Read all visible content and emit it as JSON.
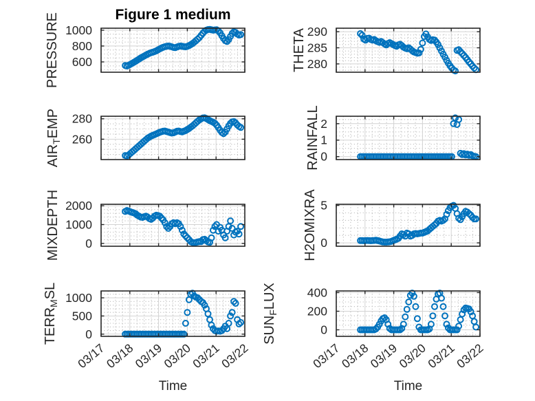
{
  "styles": {
    "background": "#ffffff",
    "axis_color": "#262626",
    "grid_color": "#d2d2d2",
    "minor_grid_color": "#bdbdbd",
    "text_color": "#262626",
    "title_color": "#000000"
  },
  "chart_data": {
    "type": "scatter",
    "title": "Figure 1 medium",
    "xlabel": "Time",
    "marker": "o",
    "marker_color": "#0072BD",
    "grid": "major+minor",
    "xtick_labels": [
      "03/17",
      "03/18",
      "03/19",
      "03/20",
      "03/21",
      "03/22"
    ],
    "xlim_days": [
      0,
      5
    ],
    "x_minor_step_days": 0.25,
    "x_days": [
      0.84,
      0.9,
      0.96,
      1.02,
      1.08,
      1.14,
      1.2,
      1.26,
      1.32,
      1.38,
      1.44,
      1.5,
      1.56,
      1.62,
      1.68,
      1.74,
      1.8,
      1.86,
      1.92,
      1.98,
      2.04,
      2.1,
      2.16,
      2.22,
      2.28,
      2.34,
      2.4,
      2.46,
      2.52,
      2.58,
      2.64,
      2.7,
      2.76,
      2.82,
      2.88,
      2.94,
      3.0,
      3.06,
      3.12,
      3.18,
      3.24,
      3.3,
      3.36,
      3.42,
      3.48,
      3.54,
      3.6,
      3.66,
      3.72,
      3.78,
      3.84,
      3.9,
      3.96,
      4.02,
      4.08,
      4.14,
      4.2,
      4.26,
      4.32,
      4.38,
      4.44,
      4.5,
      4.56,
      4.62,
      4.68,
      4.74,
      4.8,
      4.86
    ],
    "subplots": [
      {
        "name": "PRESSURE",
        "ylabel_parts": [
          {
            "text": "PRESSURE"
          }
        ],
        "yticks": [
          600,
          800,
          1000
        ],
        "ylim": [
          470,
          1025
        ],
        "y_minor_step": 50,
        "values": [
          555,
          548,
          558,
          570,
          582,
          595,
          608,
          622,
          636,
          650,
          662,
          674,
          686,
          698,
          708,
          716,
          722,
          730,
          740,
          752,
          764,
          775,
          785,
          792,
          797,
          800,
          798,
          790,
          782,
          780,
          788,
          796,
          800,
          798,
          793,
          790,
          796,
          806,
          818,
          832,
          848,
          866,
          886,
          908,
          935,
          962,
          985,
          1000,
          1008,
          1010,
          1005,
          1000,
          1003,
          1005,
          992,
          965,
          930,
          895,
          868,
          858,
          882,
          922,
          958,
          980,
          972,
          950,
          938,
          944
        ]
      },
      {
        "name": "THETA",
        "ylabel_parts": [
          {
            "text": "THETA"
          }
        ],
        "yticks": [
          280,
          285,
          290
        ],
        "ylim": [
          277.4,
          291.1
        ],
        "y_minor_step": 1,
        "values": [
          289.4,
          288.9,
          287.7,
          287.4,
          287.9,
          288.0,
          287.6,
          287.4,
          287.6,
          287.2,
          286.9,
          286.7,
          287.0,
          286.6,
          286.2,
          285.9,
          286.3,
          286.6,
          286.3,
          286.0,
          285.7,
          285.5,
          285.9,
          286.1,
          285.7,
          285.2,
          284.9,
          284.7,
          285.0,
          284.6,
          284.1,
          283.7,
          283.5,
          283.3,
          283.4,
          284.5,
          286.5,
          288.5,
          289.3,
          288.4,
          287.6,
          287.3,
          287.5,
          287.4,
          286.8,
          286.0,
          285.0,
          284.0,
          283.0,
          282.1,
          281.1,
          280.2,
          279.4,
          278.7,
          278.1,
          277.8,
          284.2,
          284.4,
          283.8,
          283.2,
          282.6,
          282.0,
          281.3,
          280.6,
          280.0,
          279.3,
          278.7,
          278.2
        ]
      },
      {
        "name": "AIR_TEMP",
        "ylabel_parts": [
          {
            "text": "AIR"
          },
          {
            "text": "T",
            "sub": true
          },
          {
            "text": "EMP"
          }
        ],
        "yticks": [
          260,
          280
        ],
        "ylim": [
          240,
          282.5
        ],
        "y_minor_step": 5,
        "values": [
          244,
          243.5,
          244.5,
          246,
          247.5,
          249,
          250.5,
          252,
          253.5,
          255,
          256.5,
          258,
          259.5,
          261,
          262,
          263,
          263.8,
          264.5,
          265.2,
          266,
          266.8,
          267.3,
          267.8,
          268,
          267.5,
          267,
          266.5,
          266,
          266.3,
          267,
          267.8,
          268,
          267.5,
          267.2,
          267.8,
          268.5,
          269.5,
          270.5,
          271.8,
          273,
          274.5,
          276,
          277.5,
          279,
          280,
          280.8,
          281,
          280.3,
          279.2,
          278.2,
          277.4,
          276.6,
          275.6,
          273.8,
          271.4,
          268.8,
          266.6,
          265.5,
          267,
          270,
          273,
          275.5,
          277,
          277.3,
          276,
          274,
          272.5,
          271.5
        ]
      },
      {
        "name": "RAINFALL",
        "ylabel_parts": [
          {
            "text": "RAINFALL"
          }
        ],
        "yticks": [
          0,
          1,
          2
        ],
        "ylim": [
          -0.18,
          2.45
        ],
        "y_minor_step": 0.25,
        "values": [
          0,
          0,
          0,
          0,
          0,
          0,
          0,
          0,
          0,
          0,
          0,
          0,
          0,
          0,
          0,
          0,
          0,
          0,
          0,
          0,
          0,
          0,
          0,
          0,
          0,
          0,
          0,
          0,
          0,
          0,
          0,
          0,
          0,
          0,
          0,
          0,
          0,
          0,
          0,
          0,
          0,
          0,
          0,
          0,
          0,
          0,
          0,
          0,
          0,
          0,
          0,
          0,
          0,
          0,
          2.0,
          2.35,
          1.95,
          2.25,
          0.2,
          0.12,
          0.18,
          0.1,
          0.15,
          0.08,
          0.12,
          0.05,
          0.02,
          0
        ]
      },
      {
        "name": "MIXDEPTH",
        "ylabel_parts": [
          {
            "text": "MIXDEPTH"
          }
        ],
        "yticks": [
          0,
          1000,
          2000
        ],
        "ylim": [
          -150,
          2080
        ],
        "y_minor_step": 200,
        "values": [
          1700,
          1750,
          1720,
          1680,
          1650,
          1620,
          1580,
          1500,
          1450,
          1400,
          1380,
          1420,
          1450,
          1400,
          1320,
          1280,
          1350,
          1450,
          1500,
          1480,
          1450,
          1350,
          1250,
          1100,
          900,
          800,
          900,
          1050,
          1100,
          1050,
          1100,
          1050,
          900,
          700,
          500,
          400,
          300,
          200,
          100,
          50,
          30,
          50,
          80,
          100,
          100,
          200,
          220,
          150,
          80,
          60,
          300,
          700,
          900,
          1000,
          650,
          850,
          700,
          450,
          300,
          650,
          900,
          1200,
          800,
          450,
          600,
          650,
          500,
          900
        ]
      },
      {
        "name": "H2OMIXRA",
        "ylabel_parts": [
          {
            "text": "H2OMIXRA"
          }
        ],
        "yticks": [
          0,
          5
        ],
        "ylim": [
          -0.45,
          5.15
        ],
        "y_minor_step": 1,
        "values": [
          0.3,
          0.3,
          0.28,
          0.3,
          0.32,
          0.3,
          0.28,
          0.3,
          0.32,
          0.35,
          0.3,
          0.25,
          0.18,
          0.12,
          0.1,
          0.1,
          0.12,
          0.15,
          0.2,
          0.3,
          0.4,
          0.5,
          0.6,
          0.9,
          1.2,
          1.1,
          0.9,
          1.3,
          1.2,
          0.9,
          1.0,
          1.2,
          1.25,
          1.2,
          1.25,
          1.3,
          1.3,
          1.4,
          1.5,
          1.6,
          1.8,
          2.0,
          2.2,
          2.4,
          2.6,
          2.9,
          3.0,
          2.9,
          3.0,
          3.2,
          3.8,
          4.3,
          4.7,
          4.9,
          5.0,
          4.6,
          3.9,
          3.3,
          3.1,
          3.5,
          3.9,
          4.2,
          4.1,
          3.9,
          3.7,
          3.4,
          3.2,
          3.2
        ]
      },
      {
        "name": "TERR_MSL",
        "ylabel_parts": [
          {
            "text": "TERR"
          },
          {
            "text": "M",
            "sub": true
          },
          {
            "text": "SL"
          }
        ],
        "yticks": [
          0,
          500,
          1000
        ],
        "ylim": [
          -60,
          1190
        ],
        "y_minor_step": 100,
        "values": [
          0,
          0,
          0,
          0,
          0,
          0,
          0,
          0,
          0,
          0,
          0,
          0,
          0,
          0,
          0,
          0,
          0,
          0,
          0,
          0,
          0,
          0,
          0,
          0,
          0,
          0,
          0,
          0,
          0,
          0,
          0,
          0,
          0,
          0,
          0,
          300,
          600,
          950,
          1100,
          1130,
          1050,
          1020,
          1000,
          950,
          900,
          870,
          800,
          700,
          560,
          400,
          250,
          150,
          100,
          80,
          90,
          80,
          100,
          150,
          220,
          150,
          300,
          500,
          600,
          900,
          850,
          400,
          280,
          320
        ]
      },
      {
        "name": "SUN_FLUX",
        "ylabel_parts": [
          {
            "text": "SUN"
          },
          {
            "text": "F",
            "sub": true
          },
          {
            "text": "LUX"
          }
        ],
        "yticks": [
          0,
          200,
          400
        ],
        "ylim": [
          -70,
          418
        ],
        "y_minor_step": 50,
        "values": [
          0,
          0,
          0,
          0,
          0,
          0,
          0,
          0,
          0,
          10,
          30,
          60,
          95,
          120,
          130,
          110,
          60,
          15,
          0,
          0,
          0,
          0,
          0,
          0,
          15,
          60,
          140,
          220,
          300,
          370,
          395,
          360,
          250,
          120,
          30,
          0,
          0,
          0,
          0,
          0,
          10,
          60,
          150,
          250,
          330,
          385,
          395,
          340,
          250,
          150,
          60,
          20,
          0,
          0,
          0,
          0,
          0,
          40,
          110,
          170,
          215,
          235,
          230,
          225,
          195,
          150,
          90,
          30
        ]
      }
    ]
  }
}
